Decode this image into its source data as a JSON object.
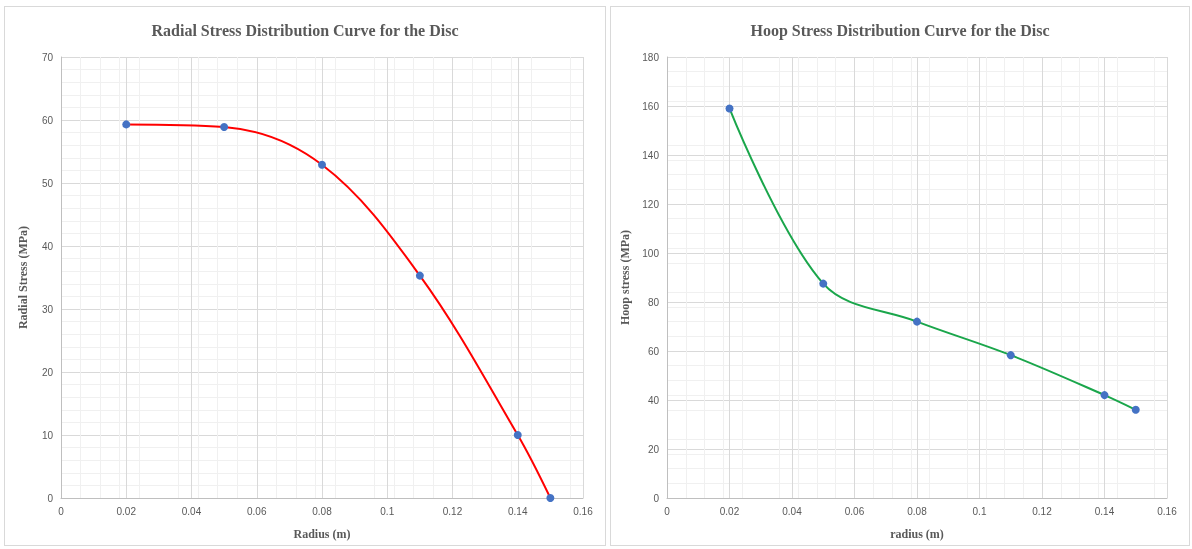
{
  "chart_data": [
    {
      "type": "line",
      "title": "Radial Stress Distribution Curve for the Disc",
      "xlabel": "Radius (m)",
      "ylabel": "Radial Stress (MPa)",
      "x": [
        0.02,
        0.05,
        0.08,
        0.11,
        0.14,
        0.15
      ],
      "series": [
        {
          "color": "#ff0000",
          "colors": [
            "#4472c4",
            "#4472c4",
            "#4472c4",
            "#4472c4",
            "#4472c4",
            "#4472c4"
          ],
          "values": [
            59.3,
            58.9,
            52.9,
            35.3,
            10,
            0
          ]
        }
      ],
      "xlim": [
        0,
        0.16
      ],
      "xticks": [
        0,
        0.02,
        0.04,
        0.06,
        0.08,
        0.1,
        0.12,
        0.14,
        0.16
      ],
      "ylim": [
        0,
        70
      ],
      "yticks": [
        0,
        10,
        20,
        30,
        40,
        50,
        60,
        70
      ],
      "grid": true,
      "marker": "circle",
      "line_style": "solid"
    },
    {
      "type": "line",
      "title": "Hoop Stress Distribution Curve for the Disc",
      "xlabel": "radius (m)",
      "ylabel": "Hoop stress (MPa)",
      "x": [
        0.02,
        0.05,
        0.08,
        0.11,
        0.14,
        0.15
      ],
      "series": [
        {
          "color": "#1aa64b",
          "colors": [
            "#4472c4",
            "#4472c4",
            "#4472c4",
            "#4472c4",
            "#4472c4",
            "#4472c4"
          ],
          "values": [
            159,
            87.5,
            72,
            58.3,
            42,
            36
          ]
        }
      ],
      "xlim": [
        0,
        0.16
      ],
      "xticks": [
        0,
        0.02,
        0.04,
        0.06,
        0.08,
        0.1,
        0.12,
        0.14,
        0.16
      ],
      "ylim": [
        0,
        180
      ],
      "yticks": [
        0,
        20,
        40,
        60,
        80,
        100,
        120,
        140,
        160,
        180
      ],
      "grid": true,
      "marker": "circle",
      "line_style": "solid"
    }
  ]
}
